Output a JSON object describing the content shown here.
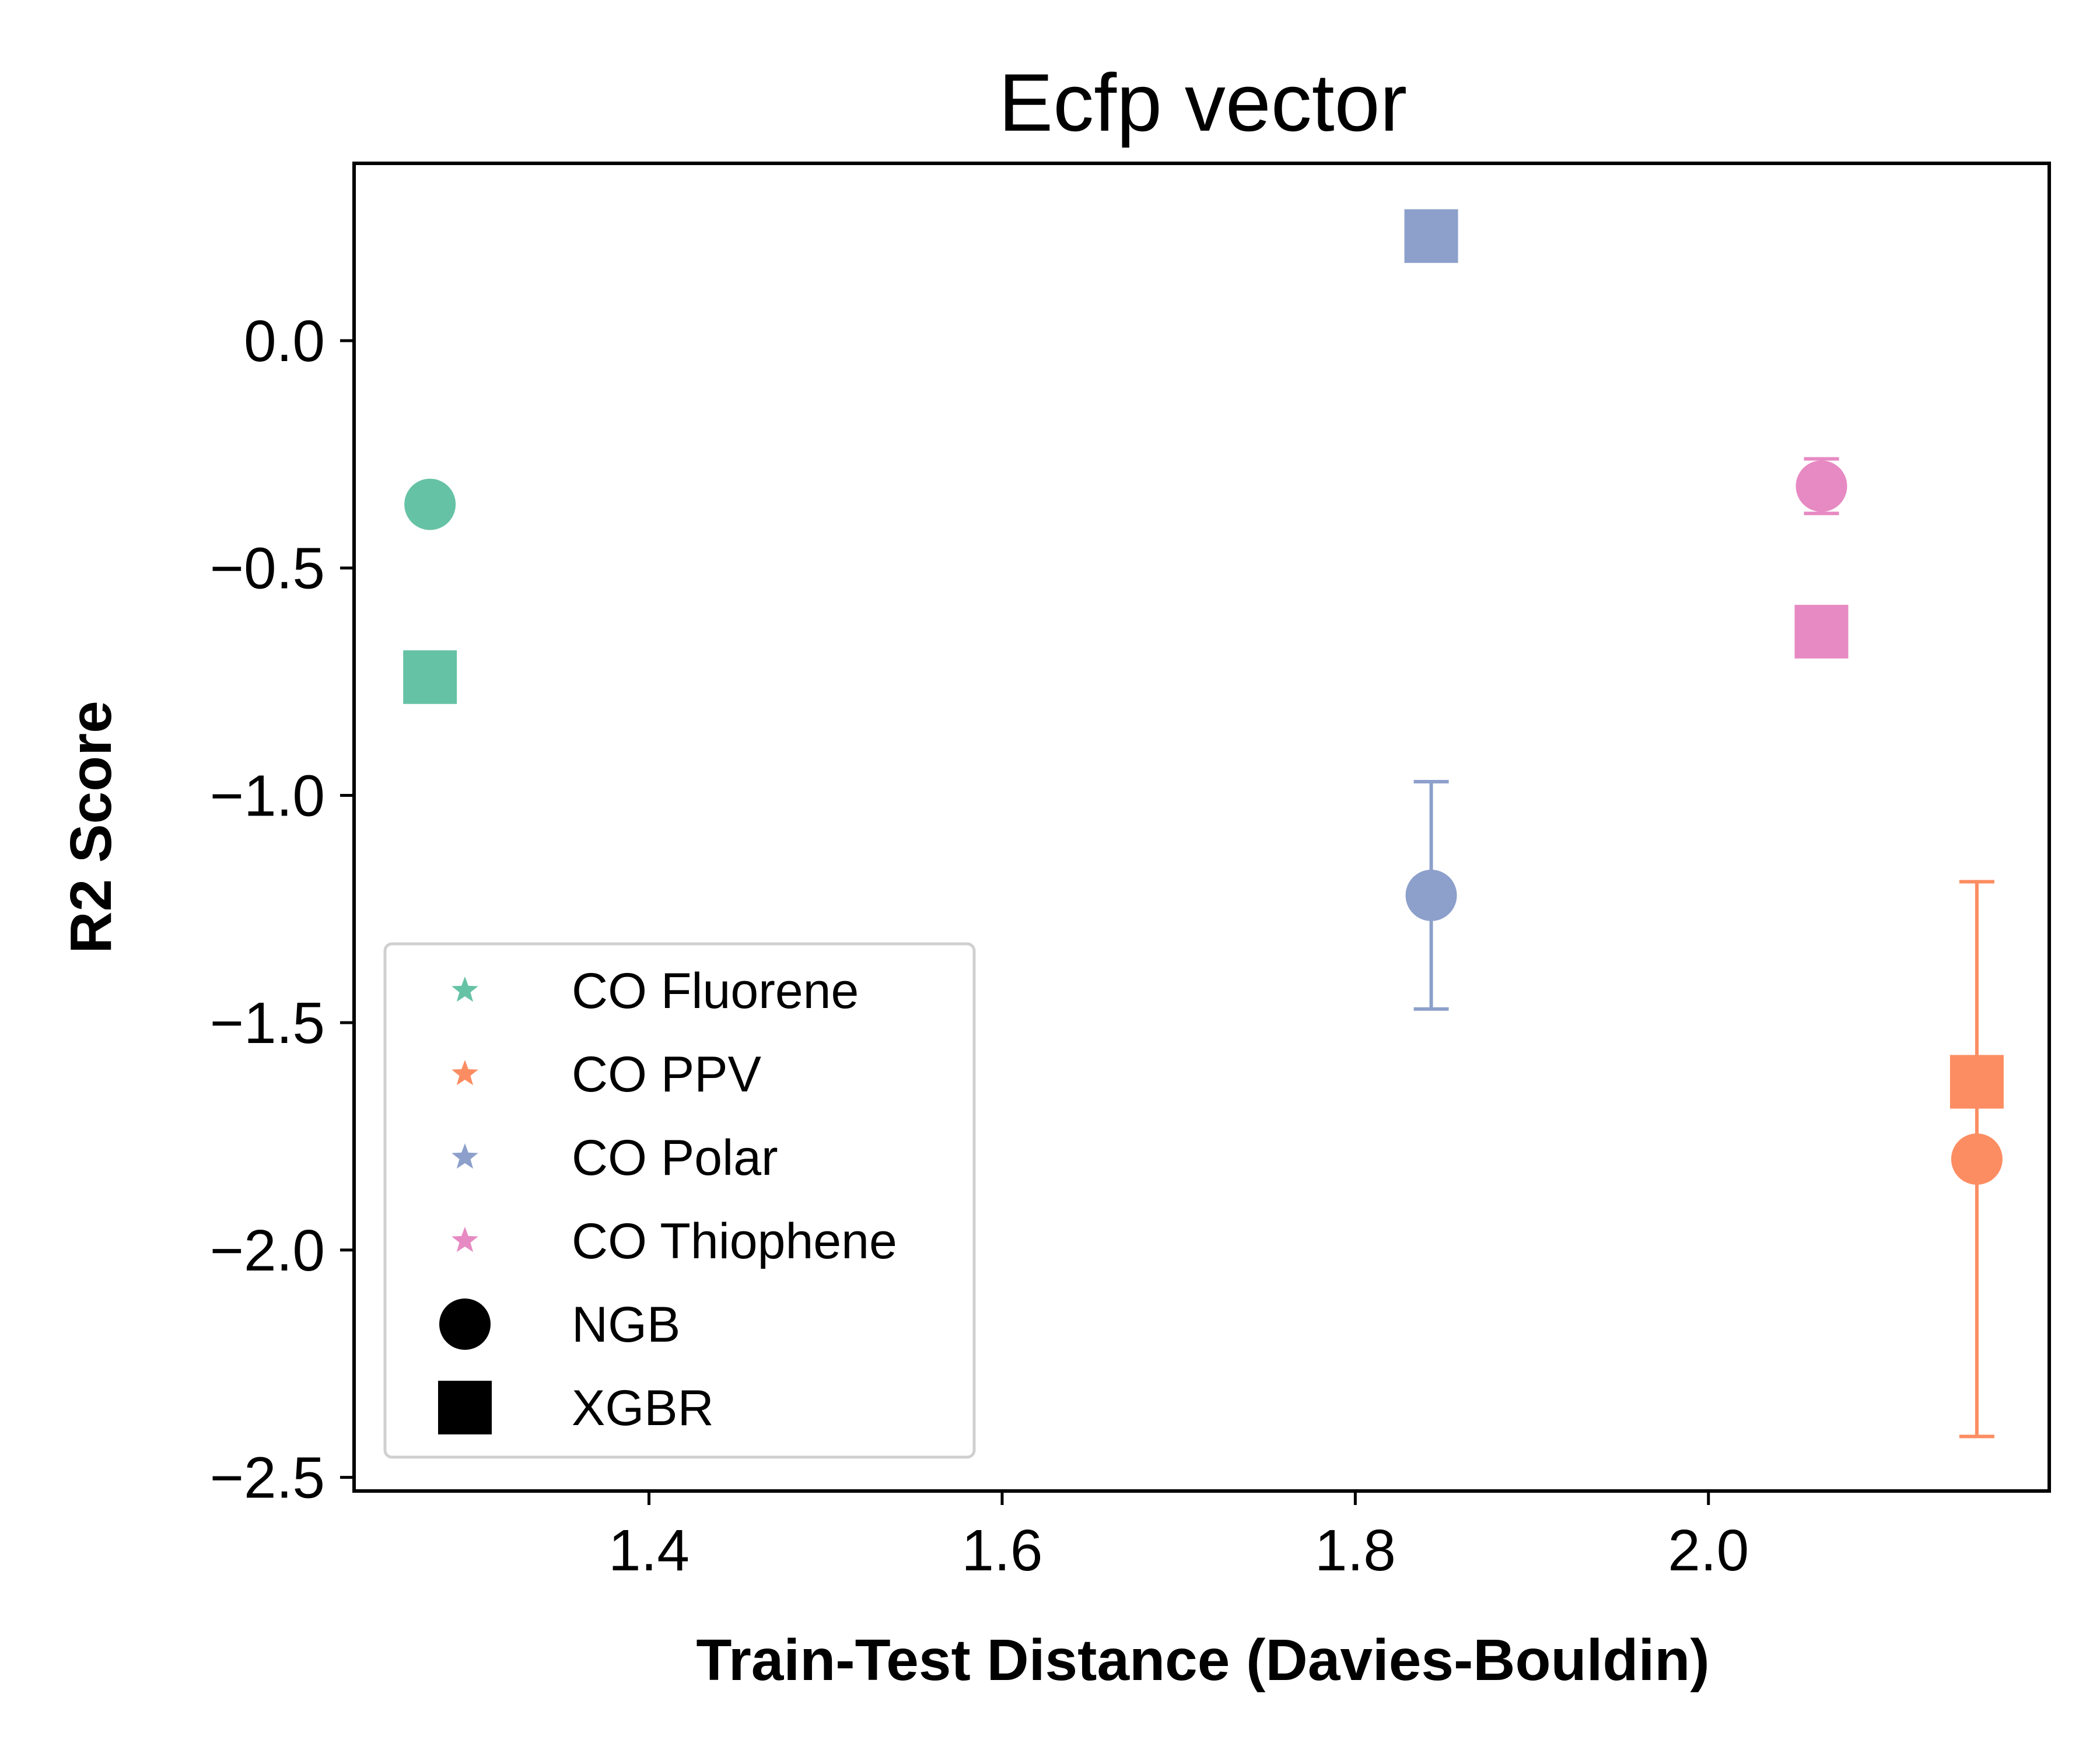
{
  "chart_data": {
    "type": "scatter",
    "title": "Ecfp vector",
    "xlabel": "Train-Test Distance (Davies-Bouldin)",
    "ylabel": "R2 Score",
    "xlim": [
      1.233,
      2.193
    ],
    "ylim": [
      -2.53,
      0.39
    ],
    "x_ticks": [
      1.4,
      1.6,
      1.8,
      2.0
    ],
    "x_tick_labels": [
      "1.4",
      "1.6",
      "1.8",
      "2.0"
    ],
    "y_ticks": [
      0.0,
      -0.5,
      -1.0,
      -1.5,
      -2.0,
      -2.5
    ],
    "y_tick_labels": [
      "0.0",
      "−0.5",
      "−1.0",
      "−1.5",
      "−2.0",
      "−2.5"
    ],
    "grid": false,
    "legend_position": "lower-left",
    "groups": [
      {
        "name": "CO Fluorene",
        "color": "#66c2a5"
      },
      {
        "name": "CO PPV",
        "color": "#fc8d62"
      },
      {
        "name": "CO Polar",
        "color": "#8da0cb"
      },
      {
        "name": "CO Thiophene",
        "color": "#e78ac3"
      }
    ],
    "models": [
      {
        "name": "NGB",
        "marker": "circle"
      },
      {
        "name": "XGBR",
        "marker": "square"
      }
    ],
    "points": [
      {
        "group": "CO Fluorene",
        "model": "NGB",
        "x": 1.276,
        "y": -0.36,
        "err": 0.02
      },
      {
        "group": "CO Fluorene",
        "model": "XGBR",
        "x": 1.276,
        "y": -0.74,
        "err": 0.0
      },
      {
        "group": "CO Polar",
        "model": "NGB",
        "x": 1.843,
        "y": -1.22,
        "err": 0.25
      },
      {
        "group": "CO Polar",
        "model": "XGBR",
        "x": 1.843,
        "y": 0.23,
        "err": 0.0
      },
      {
        "group": "CO Thiophene",
        "model": "NGB",
        "x": 2.064,
        "y": -0.32,
        "err": 0.06
      },
      {
        "group": "CO Thiophene",
        "model": "XGBR",
        "x": 2.064,
        "y": -0.64,
        "err": 0.0
      },
      {
        "group": "CO PPV",
        "model": "NGB",
        "x": 2.152,
        "y": -1.8,
        "err": 0.61
      },
      {
        "group": "CO PPV",
        "model": "XGBR",
        "x": 2.152,
        "y": -1.63,
        "err": 0.0
      }
    ]
  }
}
